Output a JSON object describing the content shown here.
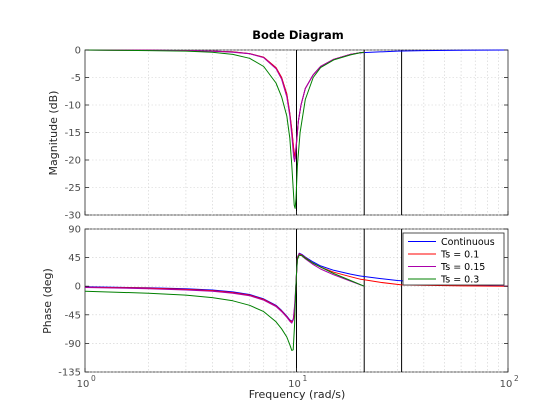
{
  "chart_data": [
    {
      "type": "line",
      "title": "Bode Diagram",
      "xlabel": "Frequency  (rad/s)",
      "ylabel": "Magnitude (dB)",
      "xscale": "log",
      "xlim": [
        1,
        100
      ],
      "ylim": [
        -30,
        0
      ],
      "xticks": [
        1,
        10,
        100
      ],
      "yticks": [
        0,
        -5,
        -10,
        -15,
        -20,
        -25,
        -30
      ],
      "ytick_labels": [
        "0",
        "-5",
        "-10",
        "-15",
        "-20",
        "-25",
        "-30"
      ],
      "grid": true,
      "vlines": [
        10,
        20.9,
        31.4
      ],
      "series": [
        {
          "name": "Continuous",
          "color": "#0000ff",
          "x": [
            1,
            2,
            3,
            4,
            5,
            6,
            7,
            8,
            8.5,
            9,
            9.3,
            9.5,
            9.7,
            9.85,
            10,
            10.2,
            10.5,
            11,
            12,
            13,
            15,
            18,
            20,
            30,
            40,
            60,
            100
          ],
          "y": [
            0,
            -0.05,
            -0.1,
            -0.2,
            -0.35,
            -0.65,
            -1.3,
            -3.2,
            -5,
            -8,
            -11.5,
            -14.5,
            -18,
            -19.8,
            -17,
            -13,
            -10,
            -7,
            -4.5,
            -3,
            -1.7,
            -0.8,
            -0.5,
            -0.2,
            -0.1,
            -0.05,
            0
          ]
        },
        {
          "name": "Ts = 0.1",
          "color": "#ff0000",
          "x": [
            1,
            2,
            3,
            4,
            5,
            6,
            7,
            8,
            8.5,
            9,
            9.3,
            9.5,
            9.7,
            9.85,
            10,
            10.2,
            10.5,
            11,
            12,
            13,
            15,
            18,
            20,
            20.9
          ],
          "y": [
            0,
            -0.05,
            -0.1,
            -0.2,
            -0.35,
            -0.65,
            -1.3,
            -3.2,
            -5,
            -8,
            -11.5,
            -14.5,
            -18,
            -19.8,
            -17,
            -13,
            -10,
            -7,
            -4.5,
            -3,
            -1.7,
            -0.8,
            -0.5,
            -0.4
          ]
        },
        {
          "name": "Ts = 0.15",
          "color": "#aa00aa",
          "x": [
            1,
            2,
            3,
            4,
            5,
            6,
            7,
            8,
            8.5,
            9,
            9.3,
            9.5,
            9.7,
            9.8,
            9.95,
            10.2,
            10.5,
            11,
            12,
            13,
            15,
            18,
            20,
            20.9
          ],
          "y": [
            0,
            -0.05,
            -0.1,
            -0.2,
            -0.4,
            -0.7,
            -1.4,
            -3.4,
            -5.3,
            -8.5,
            -12,
            -15.5,
            -19.5,
            -20.3,
            -17.5,
            -13,
            -10,
            -7,
            -4.5,
            -3,
            -1.7,
            -0.8,
            -0.5,
            -0.4
          ]
        },
        {
          "name": "Ts = 0.3",
          "color": "#008000",
          "x": [
            1,
            2,
            3,
            4,
            5,
            6,
            7,
            8,
            8.5,
            9,
            9.3,
            9.5,
            9.6,
            9.75,
            9.85,
            9.95,
            10.1,
            10.4,
            11,
            12,
            13,
            15,
            18,
            20,
            20.9
          ],
          "y": [
            0,
            -0.1,
            -0.2,
            -0.4,
            -0.8,
            -1.5,
            -3,
            -6,
            -8.5,
            -12,
            -16,
            -21,
            -24,
            -28.2,
            -28.8,
            -27,
            -21,
            -15,
            -9,
            -5,
            -3.2,
            -1.8,
            -0.9,
            -0.5,
            -0.4
          ]
        }
      ]
    },
    {
      "type": "line",
      "xlabel": "Frequency  (rad/s)",
      "ylabel": "Phase (deg)",
      "xscale": "log",
      "xlim": [
        1,
        100
      ],
      "ylim": [
        -135,
        90
      ],
      "xticks": [
        1,
        10,
        100
      ],
      "yticks": [
        90,
        45,
        0,
        -45,
        -90,
        -135
      ],
      "ytick_labels": [
        "90",
        "45",
        "0",
        "-45",
        "-90",
        "-135"
      ],
      "grid": true,
      "legend": "top-right",
      "vlines": [
        10,
        20.9,
        31.4
      ],
      "series": [
        {
          "name": "Continuous",
          "color": "#0000ff",
          "x": [
            1,
            2,
            3,
            4,
            5,
            6,
            7,
            8,
            8.5,
            9,
            9.3,
            9.55,
            9.7,
            9.85,
            10,
            10.1,
            10.3,
            10.6,
            11,
            12,
            13,
            15,
            18,
            20,
            25,
            30,
            40,
            60,
            100
          ],
          "y": [
            -1,
            -2.5,
            -4,
            -6,
            -9,
            -13,
            -20,
            -30,
            -38,
            -47,
            -53,
            -55,
            -50,
            -25,
            20,
            45,
            52,
            50,
            46,
            38,
            32,
            25,
            19,
            16,
            12,
            9,
            6,
            3,
            0
          ]
        },
        {
          "name": "Ts = 0.1",
          "color": "#ff0000",
          "x": [
            1,
            2,
            3,
            4,
            5,
            6,
            7,
            8,
            8.5,
            9,
            9.3,
            9.55,
            9.7,
            9.85,
            10,
            10.1,
            10.3,
            10.6,
            11,
            12,
            13,
            15,
            18,
            20,
            20.9,
            25,
            31.4,
            40,
            60,
            100
          ],
          "y": [
            -1.5,
            -3,
            -5,
            -7,
            -10,
            -14,
            -21,
            -31,
            -39,
            -48,
            -54,
            -56,
            -51,
            -26,
            19,
            44,
            51,
            49,
            45,
            36,
            30,
            22,
            15,
            11,
            10,
            6,
            2,
            1.5,
            0.5,
            0
          ]
        },
        {
          "name": "Ts = 0.15",
          "color": "#aa00aa",
          "x": [
            1,
            2,
            3,
            4,
            5,
            6,
            7,
            8,
            8.5,
            9,
            9.3,
            9.5,
            9.65,
            9.8,
            10,
            10.1,
            10.3,
            10.6,
            11,
            12,
            13,
            15,
            18,
            20.9
          ],
          "y": [
            -2,
            -4,
            -6,
            -8,
            -11,
            -15,
            -22,
            -32,
            -40,
            -49,
            -55,
            -58,
            -53,
            -30,
            18,
            42,
            50,
            48,
            43,
            34,
            27,
            18,
            8,
            0
          ]
        },
        {
          "name": "Ts = 0.3",
          "color": "#008000",
          "x": [
            1,
            2,
            3,
            4,
            5,
            6,
            7,
            8,
            8.5,
            9,
            9.3,
            9.5,
            9.65,
            9.8,
            9.9,
            10,
            10.1,
            10.3,
            10.6,
            11,
            12,
            13,
            15,
            18,
            20.9
          ],
          "y": [
            -8,
            -11,
            -14,
            -18,
            -23,
            -30,
            -40,
            -56,
            -67,
            -80,
            -92,
            -101,
            -100,
            -60,
            -10,
            20,
            42,
            49,
            48,
            44,
            36,
            30,
            20,
            9,
            0
          ]
        }
      ]
    }
  ]
}
